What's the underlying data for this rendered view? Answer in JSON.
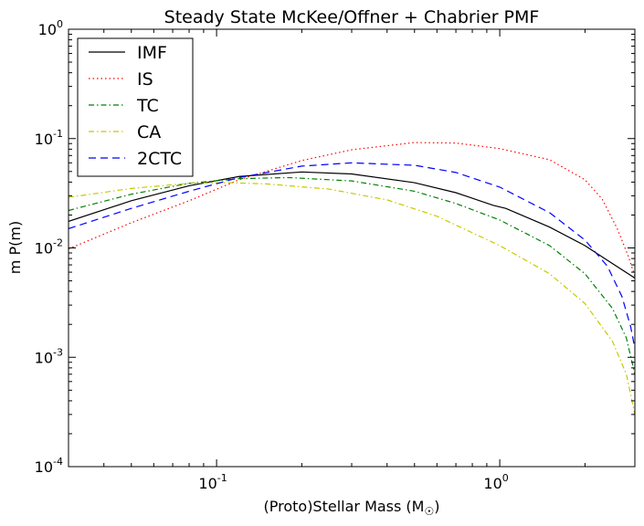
{
  "chart_data": {
    "type": "line",
    "title": "Steady State McKee/Offner + Chabrier PMF",
    "xlabel": "(Proto)Stellar Mass (M",
    "xlabel_sub": "☉",
    "xlabel_close": ")",
    "ylabel": "m P(m)",
    "xscale": "log",
    "yscale": "log",
    "xlim": [
      0.03,
      3.0
    ],
    "ylim": [
      0.0001,
      1.0
    ],
    "x_ticks": [
      {
        "value": 0.1,
        "base": "10",
        "exp": "-1"
      },
      {
        "value": 1.0,
        "base": "10",
        "exp": "0"
      }
    ],
    "y_ticks": [
      {
        "value": 0.0001,
        "base": "10",
        "exp": "-4"
      },
      {
        "value": 0.001,
        "base": "10",
        "exp": "-3"
      },
      {
        "value": 0.01,
        "base": "10",
        "exp": "-2"
      },
      {
        "value": 0.1,
        "base": "10",
        "exp": "-1"
      },
      {
        "value": 1.0,
        "base": "10",
        "exp": "0"
      }
    ],
    "legend_position": "top-left",
    "series": [
      {
        "name": "IMF",
        "color": "#000000",
        "style": "solid",
        "x": [
          0.03,
          0.05,
          0.08,
          0.12,
          0.2,
          0.3,
          0.5,
          0.7,
          0.95,
          1.05,
          1.5,
          2.0,
          2.5,
          3.0
        ],
        "y": [
          0.0175,
          0.027,
          0.037,
          0.045,
          0.0495,
          0.0475,
          0.0395,
          0.032,
          0.0245,
          0.023,
          0.0155,
          0.0105,
          0.0072,
          0.0053
        ]
      },
      {
        "name": "IS",
        "color": "#ff0000",
        "style": "dotted",
        "x": [
          0.03,
          0.05,
          0.08,
          0.12,
          0.2,
          0.3,
          0.5,
          0.7,
          1.0,
          1.5,
          2.0,
          2.3,
          2.6,
          2.85,
          3.0
        ],
        "y": [
          0.0098,
          0.017,
          0.027,
          0.042,
          0.063,
          0.079,
          0.092,
          0.091,
          0.081,
          0.064,
          0.042,
          0.028,
          0.015,
          0.0083,
          0.0055
        ]
      },
      {
        "name": "TC",
        "color": "#008000",
        "style": "dashdot",
        "x": [
          0.03,
          0.05,
          0.08,
          0.12,
          0.18,
          0.3,
          0.5,
          0.7,
          1.0,
          1.5,
          2.0,
          2.5,
          2.8,
          3.0
        ],
        "y": [
          0.022,
          0.031,
          0.039,
          0.043,
          0.044,
          0.041,
          0.033,
          0.0255,
          0.018,
          0.0105,
          0.0058,
          0.0028,
          0.0015,
          0.0007
        ]
      },
      {
        "name": "CA",
        "color": "#c8c800",
        "style": "dashdot",
        "x": [
          0.03,
          0.05,
          0.08,
          0.11,
          0.15,
          0.25,
          0.4,
          0.6,
          1.0,
          1.5,
          2.0,
          2.5,
          2.8,
          3.0
        ],
        "y": [
          0.029,
          0.035,
          0.039,
          0.0395,
          0.0385,
          0.0345,
          0.0275,
          0.0195,
          0.0105,
          0.0058,
          0.0031,
          0.0014,
          0.0007,
          0.0003
        ]
      },
      {
        "name": "2CTC",
        "color": "#0000ff",
        "style": "dashed",
        "x": [
          0.03,
          0.05,
          0.08,
          0.12,
          0.2,
          0.3,
          0.5,
          0.7,
          1.0,
          1.5,
          2.0,
          2.4,
          2.7,
          2.9,
          3.0
        ],
        "y": [
          0.015,
          0.023,
          0.033,
          0.044,
          0.056,
          0.06,
          0.057,
          0.049,
          0.036,
          0.021,
          0.0118,
          0.0068,
          0.0036,
          0.0019,
          0.0012
        ]
      }
    ]
  }
}
